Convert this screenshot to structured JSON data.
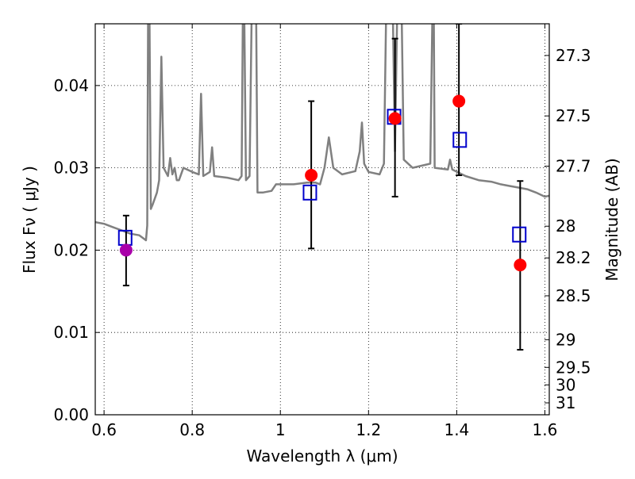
{
  "chart_data": {
    "type": "scatter",
    "title": "",
    "xlabel": "Wavelength  λ (μm)",
    "ylabel": "Flux  Fν  ( μJy )",
    "y2label": "Magnitude (AB)",
    "xlim": [
      0.58,
      1.61
    ],
    "ylim": [
      0.0,
      0.0475
    ],
    "grid": true,
    "xticks": [
      {
        "v": 0.6,
        "label": "0.6"
      },
      {
        "v": 0.8,
        "label": "0.8"
      },
      {
        "v": 1.0,
        "label": "1"
      },
      {
        "v": 1.2,
        "label": "1.2"
      },
      {
        "v": 1.4,
        "label": "1.4"
      },
      {
        "v": 1.6,
        "label": "1.6"
      }
    ],
    "yticks": [
      {
        "v": 0.0,
        "label": "0.00"
      },
      {
        "v": 0.01,
        "label": "0.01"
      },
      {
        "v": 0.02,
        "label": "0.02"
      },
      {
        "v": 0.03,
        "label": "0.03"
      },
      {
        "v": 0.04,
        "label": "0.04"
      }
    ],
    "y2ticks": [
      {
        "mag": 27.3,
        "label": "27.3"
      },
      {
        "mag": 27.5,
        "label": "27.5"
      },
      {
        "mag": 27.7,
        "label": "27.7"
      },
      {
        "mag": 28.0,
        "label": "28"
      },
      {
        "mag": 28.2,
        "label": "28.2"
      },
      {
        "mag": 28.5,
        "label": "28.5"
      },
      {
        "mag": 29.0,
        "label": "29"
      },
      {
        "mag": 29.5,
        "label": "29.5"
      },
      {
        "mag": 30.0,
        "label": "30"
      },
      {
        "mag": 31.0,
        "label": "31"
      }
    ],
    "model_spectrum": {
      "color": "#808080",
      "points": [
        [
          0.58,
          0.0234
        ],
        [
          0.6,
          0.0232
        ],
        [
          0.62,
          0.0228
        ],
        [
          0.64,
          0.0224
        ],
        [
          0.66,
          0.022
        ],
        [
          0.68,
          0.0218
        ],
        [
          0.69,
          0.0214
        ],
        [
          0.695,
          0.0212
        ],
        [
          0.698,
          0.023
        ],
        [
          0.7,
          0.049
        ],
        [
          0.703,
          0.049
        ],
        [
          0.706,
          0.025
        ],
        [
          0.71,
          0.0255
        ],
        [
          0.72,
          0.027
        ],
        [
          0.725,
          0.0285
        ],
        [
          0.73,
          0.0435
        ],
        [
          0.735,
          0.03
        ],
        [
          0.745,
          0.029
        ],
        [
          0.75,
          0.0312
        ],
        [
          0.755,
          0.0292
        ],
        [
          0.76,
          0.03
        ],
        [
          0.765,
          0.0285
        ],
        [
          0.77,
          0.0285
        ],
        [
          0.78,
          0.03
        ],
        [
          0.8,
          0.0295
        ],
        [
          0.815,
          0.0292
        ],
        [
          0.82,
          0.039
        ],
        [
          0.825,
          0.029
        ],
        [
          0.84,
          0.0295
        ],
        [
          0.845,
          0.0325
        ],
        [
          0.85,
          0.029
        ],
        [
          0.88,
          0.0288
        ],
        [
          0.905,
          0.0285
        ],
        [
          0.912,
          0.029
        ],
        [
          0.915,
          0.049
        ],
        [
          0.918,
          0.049
        ],
        [
          0.922,
          0.0285
        ],
        [
          0.93,
          0.029
        ],
        [
          0.935,
          0.049
        ],
        [
          0.945,
          0.049
        ],
        [
          0.948,
          0.027
        ],
        [
          0.96,
          0.027
        ],
        [
          0.98,
          0.0272
        ],
        [
          0.99,
          0.028
        ],
        [
          1.0,
          0.028
        ],
        [
          1.03,
          0.028
        ],
        [
          1.06,
          0.0282
        ],
        [
          1.08,
          0.0282
        ],
        [
          1.09,
          0.028
        ],
        [
          1.1,
          0.03
        ],
        [
          1.11,
          0.0337
        ],
        [
          1.12,
          0.03
        ],
        [
          1.14,
          0.0292
        ],
        [
          1.17,
          0.0296
        ],
        [
          1.18,
          0.032
        ],
        [
          1.185,
          0.0355
        ],
        [
          1.19,
          0.0305
        ],
        [
          1.2,
          0.0295
        ],
        [
          1.225,
          0.0292
        ],
        [
          1.235,
          0.0305
        ],
        [
          1.24,
          0.049
        ],
        [
          1.255,
          0.049
        ],
        [
          1.26,
          0.032
        ],
        [
          1.265,
          0.049
        ],
        [
          1.275,
          0.049
        ],
        [
          1.28,
          0.031
        ],
        [
          1.3,
          0.03
        ],
        [
          1.34,
          0.0305
        ],
        [
          1.345,
          0.049
        ],
        [
          1.348,
          0.049
        ],
        [
          1.35,
          0.03
        ],
        [
          1.38,
          0.0298
        ],
        [
          1.385,
          0.031
        ],
        [
          1.39,
          0.0298
        ],
        [
          1.42,
          0.029
        ],
        [
          1.45,
          0.0285
        ],
        [
          1.48,
          0.0283
        ],
        [
          1.5,
          0.028
        ],
        [
          1.52,
          0.0278
        ],
        [
          1.54,
          0.0276
        ],
        [
          1.56,
          0.0274
        ],
        [
          1.58,
          0.027
        ],
        [
          1.6,
          0.0265
        ],
        [
          1.61,
          0.0266
        ]
      ]
    },
    "series": [
      {
        "marker": "square-open",
        "color": "#0000cc",
        "points": [
          {
            "x": 0.648,
            "y": 0.0215
          },
          {
            "x": 1.067,
            "y": 0.027
          },
          {
            "x": 1.258,
            "y": 0.0362
          },
          {
            "x": 1.407,
            "y": 0.0334
          },
          {
            "x": 1.542,
            "y": 0.0219
          }
        ]
      },
      {
        "marker": "circle-filled",
        "color": "#ff0000",
        "points": [
          {
            "x": 1.07,
            "y": 0.0291,
            "yerr": [
              0.0202,
              0.0381
            ]
          },
          {
            "x": 1.26,
            "y": 0.036,
            "yerr": [
              0.0265,
              0.0457
            ]
          },
          {
            "x": 1.405,
            "y": 0.0381,
            "yerr": [
              0.0291,
              0.0475
            ]
          },
          {
            "x": 1.544,
            "y": 0.0182,
            "yerr": [
              0.0079,
              0.0284
            ]
          }
        ]
      },
      {
        "marker": "circle-filled",
        "color": "#aa00aa",
        "points": [
          {
            "x": 0.65,
            "y": 0.02,
            "yerr": [
              0.0157,
              0.0242
            ]
          }
        ]
      }
    ]
  }
}
